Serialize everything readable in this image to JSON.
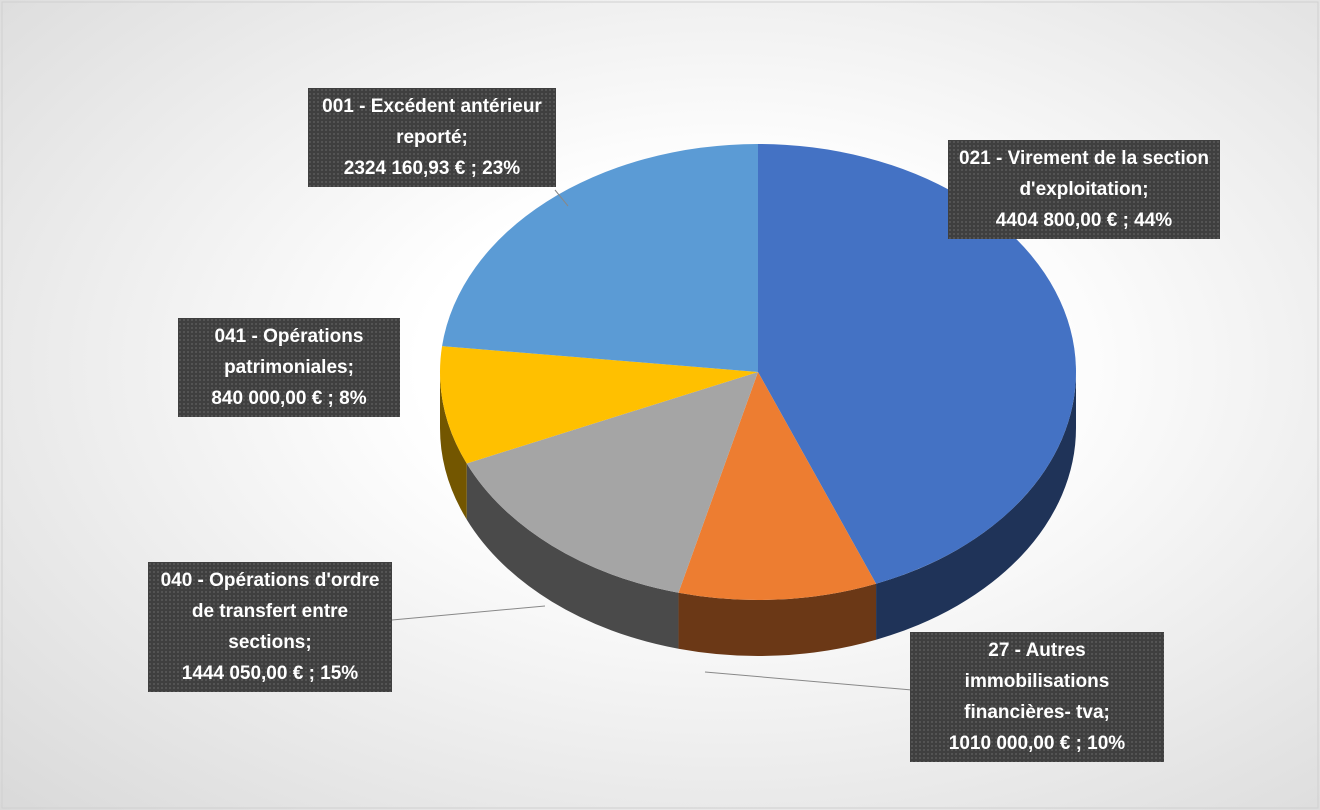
{
  "chart_data": {
    "type": "pie",
    "categories": [
      "021 - Virement de la section d'exploitation;",
      "27 - Autres immobilisations financières- tva;",
      "040 - Opérations d'ordre de transfert entre sections;",
      "041 - Opérations patrimoniales;",
      "001 - Excédent antérieur reporté;"
    ],
    "values": [
      4404800,
      1010000,
      1444050,
      840000,
      2324160.93
    ],
    "value_labels": [
      "4404 800,00 € ; 44%",
      "1010 000,00 € ; 10%",
      "1444 050,00 € ; 15%",
      "840 000,00 € ; 8%",
      "2324 160,93 € ; 23%"
    ],
    "colors": [
      "#4472c4",
      "#ed7d31",
      "#a5a5a5",
      "#ffc000",
      "#5b9bd5"
    ]
  }
}
